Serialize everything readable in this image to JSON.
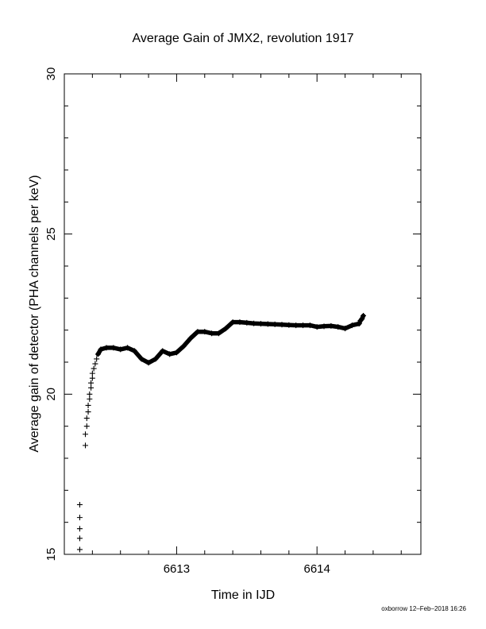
{
  "chart_data": {
    "type": "scatter",
    "title": "Average Gain of JMX2, revolution 1917",
    "xlabel": "Time in IJD",
    "ylabel": "Average gain of detector (PHA channels per keV)",
    "xlim": [
      6612.2,
      6614.74
    ],
    "ylim": [
      15,
      30
    ],
    "x_ticks": [
      6613,
      6614
    ],
    "y_ticks": [
      15,
      20,
      25,
      30
    ],
    "grid": false,
    "marker": "+",
    "series": [
      {
        "x": [
          6612.31,
          6612.31,
          6612.31,
          6612.31,
          6612.31,
          6612.35,
          6612.35,
          6612.36,
          6612.36,
          6612.37,
          6612.37,
          6612.38,
          6612.38,
          6612.39,
          6612.39,
          6612.4,
          6612.4,
          6612.41,
          6612.42,
          6612.43,
          6612.44,
          6612.46,
          6612.5,
          6612.55,
          6612.6,
          6612.65,
          6612.7,
          6612.75,
          6612.8,
          6612.85,
          6612.9,
          6612.95,
          6613.0,
          6613.05,
          6613.1,
          6613.15,
          6613.2,
          6613.25,
          6613.3,
          6613.35,
          6613.4,
          6613.45,
          6613.5,
          6613.55,
          6613.6,
          6613.65,
          6613.7,
          6613.75,
          6613.8,
          6613.85,
          6613.9,
          6613.95,
          6614.0,
          6614.05,
          6614.1,
          6614.15,
          6614.2,
          6614.25,
          6614.3,
          6614.31,
          6614.32,
          6614.33
        ],
        "y": [
          15.15,
          15.5,
          15.8,
          16.15,
          16.55,
          18.4,
          18.75,
          19.0,
          19.25,
          19.45,
          19.65,
          19.85,
          20.0,
          20.2,
          20.35,
          20.5,
          20.65,
          20.8,
          20.95,
          21.1,
          21.25,
          21.4,
          21.45,
          21.45,
          21.4,
          21.45,
          21.35,
          21.1,
          20.98,
          21.1,
          21.35,
          21.25,
          21.3,
          21.5,
          21.75,
          21.95,
          21.95,
          21.9,
          21.9,
          22.05,
          22.25,
          22.25,
          22.23,
          22.21,
          22.2,
          22.19,
          22.18,
          22.17,
          22.16,
          22.15,
          22.15,
          22.15,
          22.1,
          22.12,
          22.13,
          22.1,
          22.05,
          22.15,
          22.2,
          22.3,
          22.35,
          22.45
        ]
      }
    ]
  },
  "footer": "oxborrow 12–Feb–2018 16:26"
}
